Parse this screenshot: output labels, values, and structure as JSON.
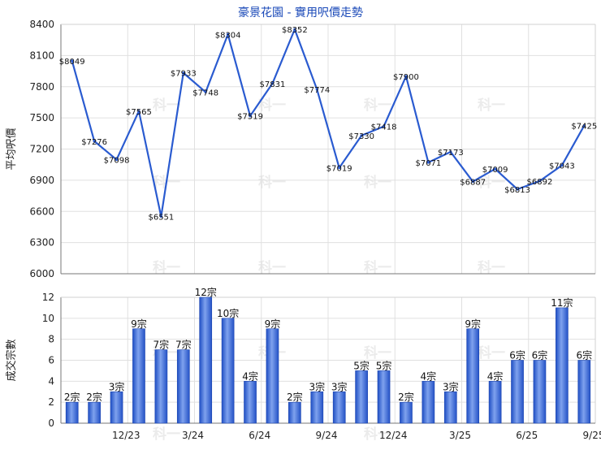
{
  "title": "豪景花園 - 實用呎價走勢",
  "watermark": "科一",
  "chart_data": [
    {
      "type": "line",
      "ylabel": "平均呎價",
      "ylim": [
        6000,
        8400
      ],
      "yticks": [
        6000,
        6300,
        6600,
        6900,
        7200,
        7500,
        7800,
        8100,
        8400
      ],
      "values": [
        8049,
        7276,
        7098,
        7565,
        6551,
        7933,
        7748,
        8304,
        7519,
        7831,
        8352,
        7774,
        7019,
        7330,
        7418,
        7900,
        7071,
        7173,
        6887,
        7009,
        6813,
        6892,
        7043,
        7425
      ],
      "labels": [
        "$8049",
        "$7276",
        "$7098",
        "$7565",
        "$6551",
        "$7933",
        "$7748",
        "$8304",
        "$7519",
        "$7831",
        "$8352",
        "$7774",
        "$7019",
        "$7330",
        "$7418",
        "$7900",
        "$7071",
        "$7173",
        "$6887",
        "$7009",
        "$6813",
        "$6892",
        "$7043",
        "$7425"
      ],
      "color": "#2a5bd0",
      "grid": true
    },
    {
      "type": "bar",
      "ylabel": "成交宗數",
      "ylim": [
        0,
        12
      ],
      "yticks": [
        0,
        2,
        4,
        6,
        8,
        10,
        12
      ],
      "xticks": [
        {
          "after_index": 2,
          "label": "12/23"
        },
        {
          "after_index": 5,
          "label": "3/24"
        },
        {
          "after_index": 8,
          "label": "6/24"
        },
        {
          "after_index": 11,
          "label": "9/24"
        },
        {
          "after_index": 14,
          "label": "12/24"
        },
        {
          "after_index": 17,
          "label": "3/25"
        },
        {
          "after_index": 20,
          "label": "6/25"
        },
        {
          "after_index": 23,
          "label": "9/25"
        }
      ],
      "values": [
        2,
        2,
        3,
        9,
        7,
        7,
        12,
        10,
        4,
        9,
        2,
        3,
        3,
        5,
        5,
        2,
        4,
        3,
        9,
        4,
        6,
        6,
        11,
        6
      ],
      "labels": [
        "2宗",
        "2宗",
        "3宗",
        "9宗",
        "7宗",
        "7宗",
        "12宗",
        "10宗",
        "4宗",
        "9宗",
        "2宗",
        "3宗",
        "3宗",
        "5宗",
        "5宗",
        "2宗",
        "4宗",
        "3宗",
        "9宗",
        "4宗",
        "6宗",
        "6宗",
        "11宗",
        "6宗"
      ],
      "color": "#3f6fd6",
      "grid": true
    }
  ]
}
